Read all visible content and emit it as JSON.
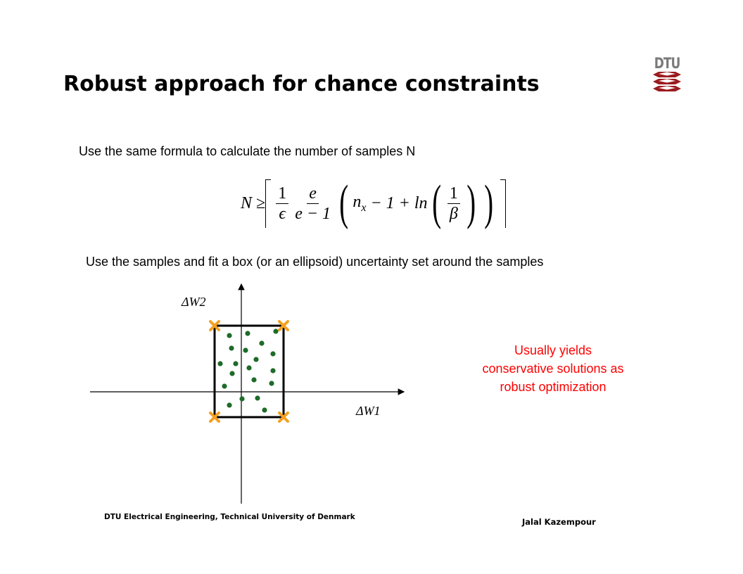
{
  "slide": {
    "title": "Robust approach for chance constraints",
    "logo_text": "DTU",
    "line1": "Use the same formula to calculate the number of samples N",
    "line2": "Use the samples and fit a box (or an ellipsoid) uncertainty set around the samples",
    "note_lines": [
      "Usually yields",
      "conservative solutions as",
      "robust optimization"
    ],
    "footer_left": "DTU Electrical Engineering, Technical University of Denmark",
    "footer_right": "Jalal Kazempour"
  },
  "formula": {
    "lhs": "N ≥",
    "frac1_num": "1",
    "frac1_den": "ϵ",
    "frac2_num": "e",
    "frac2_den": "e − 1",
    "nx": "n",
    "nx_sub": "x",
    "middle": "− 1 + ln",
    "frac3_num": "1",
    "frac3_den": "β"
  },
  "figure": {
    "x_label": "ΔW1",
    "y_label": "ΔW2",
    "box_color": "#000000",
    "corner_marker_color": "#f4a020",
    "sample_color": "#1e6b2a"
  },
  "colors": {
    "note": "#ff0000",
    "logo_red": "#9b1b1e",
    "logo_gray": "#7a7a7a"
  }
}
